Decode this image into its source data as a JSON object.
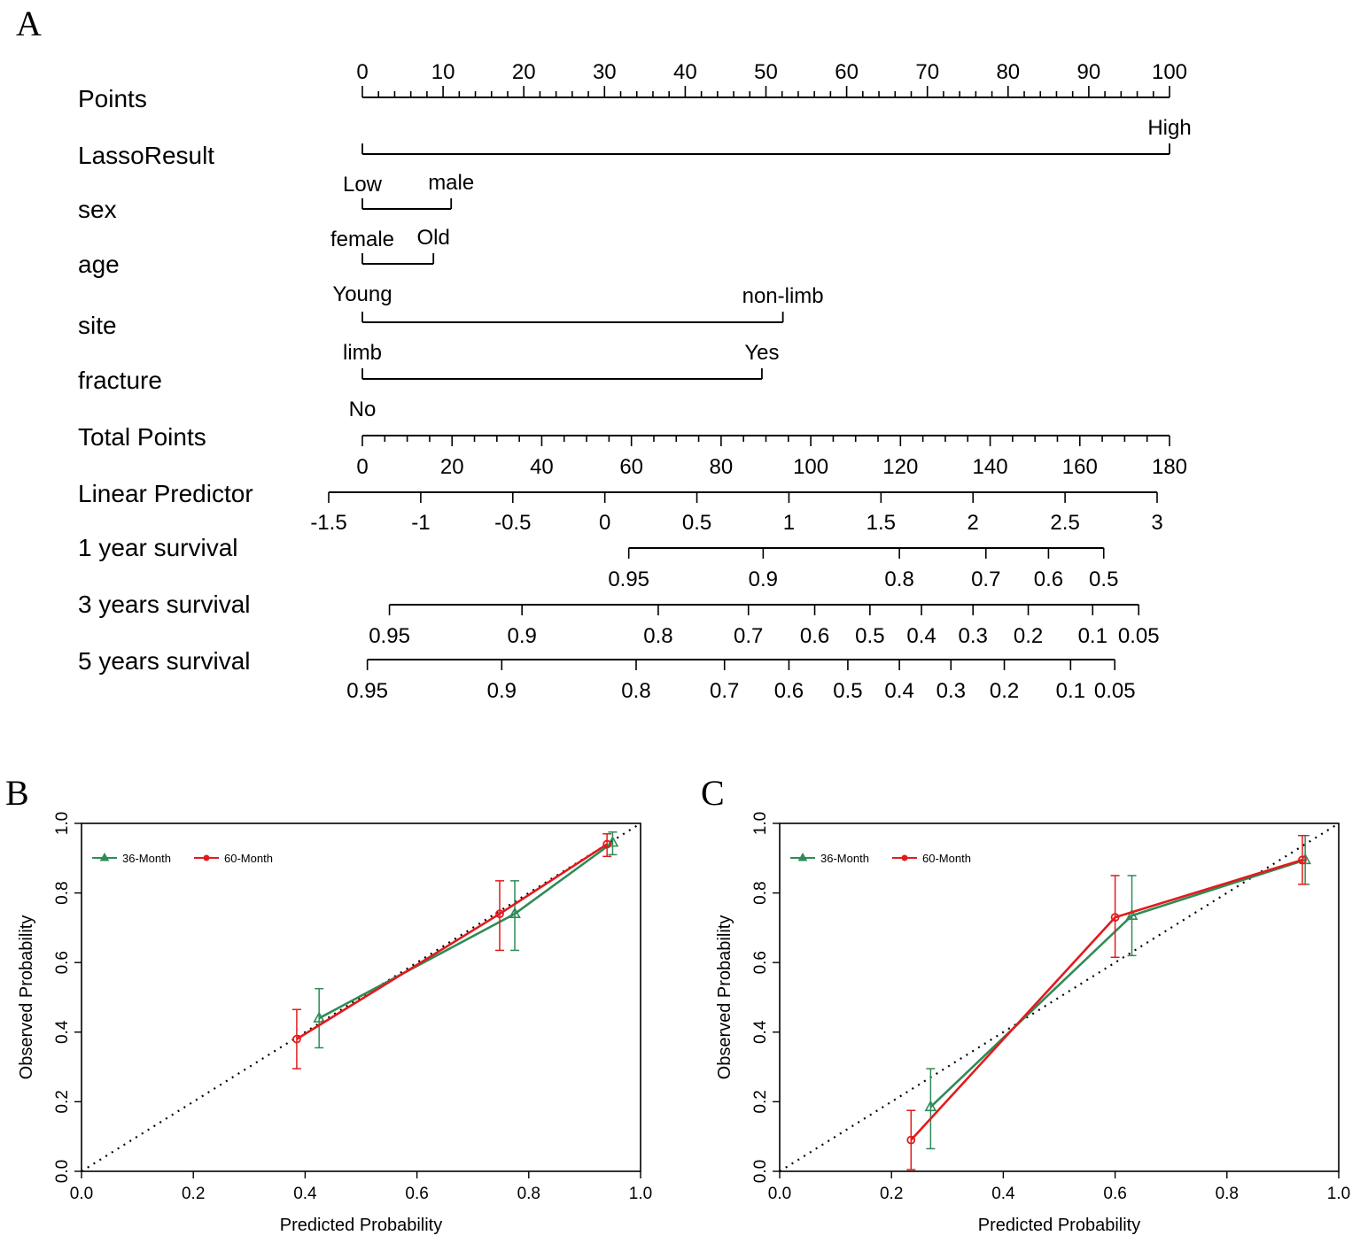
{
  "chart_data": [
    {
      "type": "nomogram",
      "panel_label": "A",
      "rows": [
        {
          "label": "Points",
          "kind": "points_axis",
          "min": 0,
          "max": 100,
          "major": [
            0,
            10,
            20,
            30,
            40,
            50,
            60,
            70,
            80,
            90,
            100
          ]
        },
        {
          "label": "LassoResult",
          "kind": "factor",
          "levels": [
            {
              "name": "Low",
              "points": 0,
              "pos": "below"
            },
            {
              "name": "High",
              "points": 100,
              "pos": "above"
            }
          ]
        },
        {
          "label": "sex",
          "kind": "factor",
          "levels": [
            {
              "name": "female",
              "points": 0,
              "pos": "below"
            },
            {
              "name": "male",
              "points": 11,
              "pos": "above"
            }
          ]
        },
        {
          "label": "age",
          "kind": "factor",
          "levels": [
            {
              "name": "Young",
              "points": 0,
              "pos": "below"
            },
            {
              "name": "Old",
              "points": 8.8,
              "pos": "above"
            }
          ]
        },
        {
          "label": "site",
          "kind": "factor",
          "levels": [
            {
              "name": "limb",
              "points": 0,
              "pos": "below"
            },
            {
              "name": "non-limb",
              "points": 52.1,
              "pos": "above"
            }
          ]
        },
        {
          "label": "fracture",
          "kind": "factor",
          "levels": [
            {
              "name": "No",
              "points": 0,
              "pos": "below"
            },
            {
              "name": "Yes",
              "points": 49.5,
              "pos": "above"
            }
          ]
        },
        {
          "label": "Total Points",
          "kind": "total_axis",
          "min": 0,
          "max": 180,
          "major": [
            "0",
            "20",
            "40",
            "60",
            "80",
            "100",
            "120",
            "140",
            "160",
            "180"
          ]
        },
        {
          "label": "Linear Predictor",
          "kind": "lp_axis",
          "min": -1.5,
          "max": 3,
          "major": [
            "-1.5",
            "-1",
            "-0.5",
            "0",
            "0.5",
            "1",
            "1.5",
            "2",
            "2.5",
            "3"
          ]
        },
        {
          "label": "1 year survival",
          "kind": "survival",
          "ticks": [
            {
              "v": "0.95",
              "lp": 0.13
            },
            {
              "v": "0.9",
              "lp": 0.86
            },
            {
              "v": "0.8",
              "lp": 1.6
            },
            {
              "v": "0.7",
              "lp": 2.07
            },
            {
              "v": "0.6",
              "lp": 2.41
            },
            {
              "v": "0.5",
              "lp": 2.71
            }
          ]
        },
        {
          "label": "3 years survival",
          "kind": "survival",
          "ticks": [
            {
              "v": "0.95",
              "lp": -1.17
            },
            {
              "v": "0.9",
              "lp": -0.45
            },
            {
              "v": "0.8",
              "lp": 0.29
            },
            {
              "v": "0.7",
              "lp": 0.78
            },
            {
              "v": "0.6",
              "lp": 1.14
            },
            {
              "v": "0.5",
              "lp": 1.44
            },
            {
              "v": "0.4",
              "lp": 1.72
            },
            {
              "v": "0.3",
              "lp": 2.0
            },
            {
              "v": "0.2",
              "lp": 2.3
            },
            {
              "v": "0.1",
              "lp": 2.65
            },
            {
              "v": "0.05",
              "lp": 2.9
            }
          ]
        },
        {
          "label": "5 years survival",
          "kind": "survival",
          "ticks": [
            {
              "v": "0.95",
              "lp": -1.29
            },
            {
              "v": "0.9",
              "lp": -0.56
            },
            {
              "v": "0.8",
              "lp": 0.17
            },
            {
              "v": "0.7",
              "lp": 0.65
            },
            {
              "v": "0.6",
              "lp": 1.0
            },
            {
              "v": "0.5",
              "lp": 1.32
            },
            {
              "v": "0.4",
              "lp": 1.6
            },
            {
              "v": "0.3",
              "lp": 1.88
            },
            {
              "v": "0.2",
              "lp": 2.17
            },
            {
              "v": "0.1",
              "lp": 2.53
            },
            {
              "v": "0.05",
              "lp": 2.77
            }
          ]
        }
      ]
    },
    {
      "type": "calibration",
      "panel_label": "B",
      "xlabel": "Predicted Probability",
      "ylabel": "Observed  Probability",
      "xlim": [
        0,
        1
      ],
      "ylim": [
        0,
        1
      ],
      "xticks": [
        "0.0",
        "0.2",
        "0.4",
        "0.6",
        "0.8",
        "1.0"
      ],
      "yticks": [
        "0.0",
        "0.2",
        "0.4",
        "0.6",
        "0.8",
        "1.0"
      ],
      "legend": {
        "position": "top-left",
        "entries": [
          "36-Month",
          "60-Month"
        ]
      },
      "series": [
        {
          "name": "36-Month",
          "color": "#2e8b57",
          "marker": "triangle",
          "x": [
            0.425,
            0.775,
            0.95
          ],
          "y": [
            0.44,
            0.74,
            0.945
          ],
          "lower": [
            0.355,
            0.635,
            0.91
          ],
          "upper": [
            0.525,
            0.835,
            0.975
          ]
        },
        {
          "name": "60-Month",
          "color": "#e31a1c",
          "marker": "circle",
          "x": [
            0.385,
            0.748,
            0.94
          ],
          "y": [
            0.38,
            0.74,
            0.94
          ],
          "lower": [
            0.295,
            0.635,
            0.905
          ],
          "upper": [
            0.465,
            0.835,
            0.97
          ]
        }
      ]
    },
    {
      "type": "calibration",
      "panel_label": "C",
      "xlabel": "Predicted Probability",
      "ylabel": "Observed  Probability",
      "xlim": [
        0,
        1
      ],
      "ylim": [
        0,
        1
      ],
      "xticks": [
        "0.0",
        "0.2",
        "0.4",
        "0.6",
        "0.8",
        "1.0"
      ],
      "yticks": [
        "0.0",
        "0.2",
        "0.4",
        "0.6",
        "0.8",
        "1.0"
      ],
      "legend": {
        "position": "top-left",
        "entries": [
          "36-Month",
          "60-Month"
        ]
      },
      "series": [
        {
          "name": "36-Month",
          "color": "#2e8b57",
          "marker": "triangle",
          "x": [
            0.27,
            0.63,
            0.94
          ],
          "y": [
            0.185,
            0.735,
            0.895
          ],
          "lower": [
            0.065,
            0.62,
            0.825
          ],
          "upper": [
            0.295,
            0.85,
            0.965
          ]
        },
        {
          "name": "60-Month",
          "color": "#e31a1c",
          "marker": "circle",
          "x": [
            0.235,
            0.6,
            0.935
          ],
          "y": [
            0.09,
            0.73,
            0.895
          ],
          "lower": [
            0.005,
            0.615,
            0.825
          ],
          "upper": [
            0.175,
            0.85,
            0.965
          ]
        }
      ]
    }
  ]
}
